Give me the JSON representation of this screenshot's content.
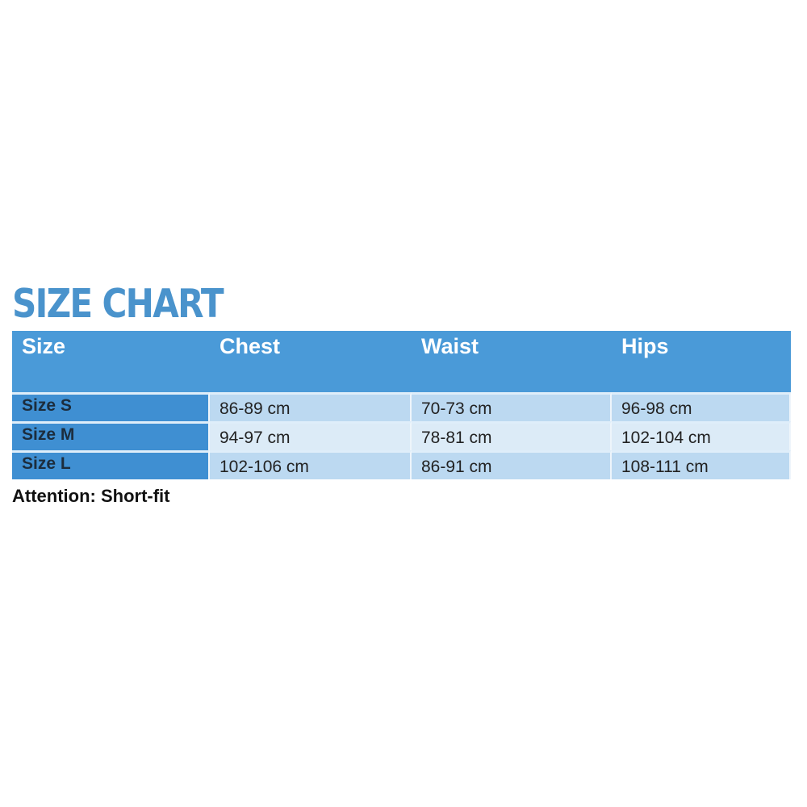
{
  "title": "SIZE CHART",
  "table": {
    "headers": [
      "Size",
      "Chest",
      "Waist",
      "Hips"
    ],
    "rows": [
      [
        "Size S",
        "86-89 cm",
        "70-73 cm",
        "96-98 cm"
      ],
      [
        "Size M",
        "94-97 cm",
        "78-81 cm",
        "102-104 cm"
      ],
      [
        "Size L",
        "102-106 cm",
        "86-91 cm",
        "108-111 cm"
      ]
    ]
  },
  "note": "Attention: Short-fit",
  "colors": {
    "title": "#4a93cc",
    "header_bg": "#4a9ad8",
    "size_col_bg": "#3f8fd2",
    "row_light": "#bcd9f1",
    "row_lighter": "#dcebf7"
  }
}
